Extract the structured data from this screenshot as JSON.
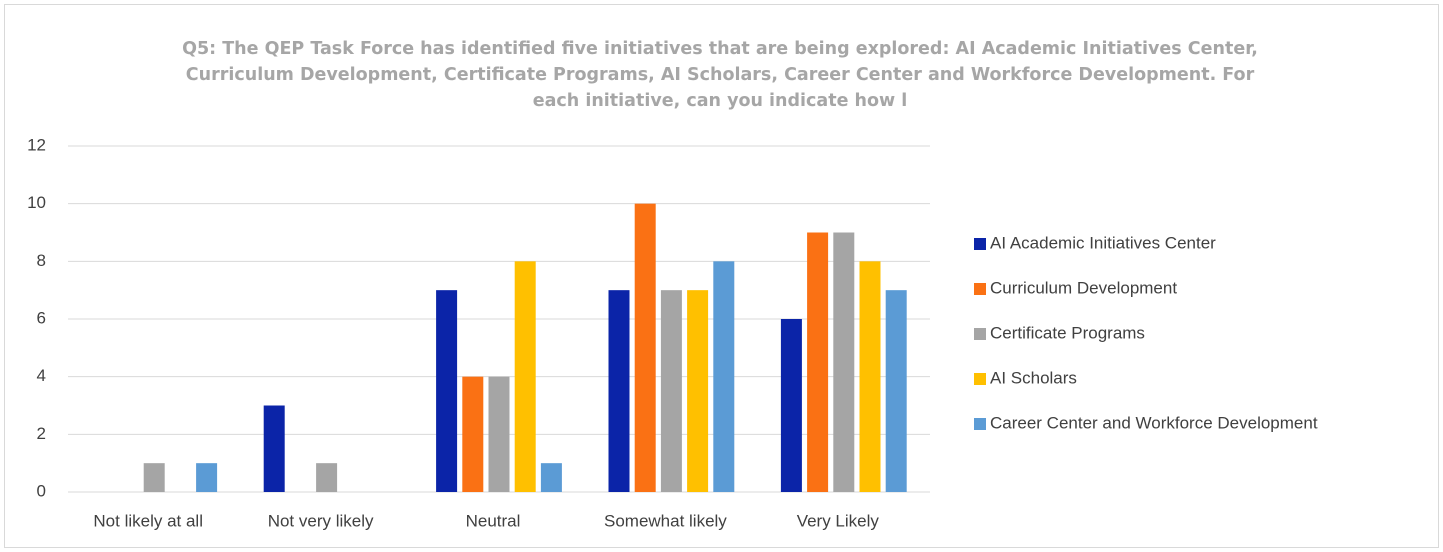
{
  "chart_data": {
    "type": "bar",
    "title": "Q5: The QEP Task Force has identified five initiatives that are being explored: AI Academic Initiatives Center, Curriculum Development, Certificate Programs, AI Scholars, Career Center and Workforce Development. For each initiative, can you indicate how l",
    "categories": [
      "Not likely at all",
      "Not very likely",
      "Neutral",
      "Somewhat likely",
      "Very Likely"
    ],
    "series": [
      {
        "name": "AI Academic Initiatives Center",
        "color": "#0b24a8",
        "values": [
          0,
          3,
          7,
          7,
          6
        ]
      },
      {
        "name": "Curriculum Development",
        "color": "#fa7114",
        "values": [
          0,
          0,
          4,
          10,
          9
        ]
      },
      {
        "name": "Certificate Programs",
        "color": "#a5a5a5",
        "values": [
          1,
          1,
          4,
          7,
          9
        ]
      },
      {
        "name": "AI Scholars",
        "color": "#ffc000",
        "values": [
          0,
          0,
          8,
          7,
          8
        ]
      },
      {
        "name": "Career Center and Workforce Development",
        "color": "#5b9bd5",
        "values": [
          1,
          0,
          1,
          8,
          7
        ]
      }
    ],
    "ylim": [
      0,
      12
    ],
    "yticks": [
      0,
      2,
      4,
      6,
      8,
      10,
      12
    ],
    "grid": true,
    "legend": "right"
  }
}
